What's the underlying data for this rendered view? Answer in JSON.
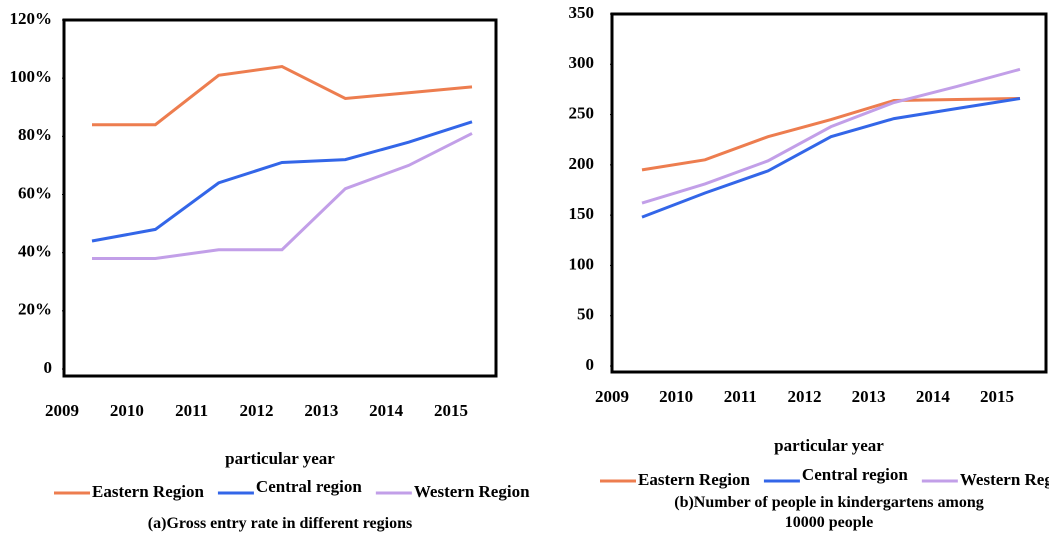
{
  "chart_data": [
    {
      "type": "line",
      "title": "(a)Gross entry rate in different regions",
      "x_label": "particular year",
      "categories": [
        "2009",
        "2010",
        "2011",
        "2012",
        "2013",
        "2014",
        "2015"
      ],
      "series": [
        {
          "name": "Eastern Region",
          "color": "#ed7d4f",
          "values": [
            84,
            84,
            101,
            104,
            93,
            95,
            97
          ]
        },
        {
          "name": "Central region",
          "color": "#3366e8",
          "values": [
            44,
            48,
            64,
            71,
            72,
            78,
            85
          ]
        },
        {
          "name": "Western Region",
          "color": "#c29fe8",
          "values": [
            38,
            38,
            41,
            41,
            62,
            70,
            81
          ]
        }
      ],
      "ylim": [
        0,
        120
      ],
      "yticks": [
        0,
        {
          "value": 20,
          "label": "20%"
        },
        {
          "value": 40,
          "label": "40%"
        },
        {
          "value": 60,
          "label": "60%"
        },
        {
          "value": 80,
          "label": "80%"
        },
        {
          "value": 100,
          "label": "100%"
        },
        {
          "value": 120,
          "label": "120%"
        }
      ]
    },
    {
      "type": "line",
      "title": "(b)Number of people in kindergartens among 10000 people",
      "x_label": "particular year",
      "categories": [
        "2009",
        "2010",
        "2011",
        "2012",
        "2013",
        "2014",
        "2015"
      ],
      "series": [
        {
          "name": "Eastern Region",
          "color": "#ed7d4f",
          "values": [
            195,
            205,
            228,
            245,
            264,
            265,
            266
          ]
        },
        {
          "name": "Central region",
          "color": "#3366e8",
          "values": [
            148,
            172,
            194,
            228,
            246,
            256,
            266
          ]
        },
        {
          "name": "Western Region",
          "color": "#c29fe8",
          "values": [
            162,
            181,
            204,
            238,
            262,
            278,
            295
          ]
        }
      ],
      "ylim": [
        0,
        350
      ],
      "yticks": [
        0,
        50,
        100,
        150,
        200,
        250,
        300,
        350
      ]
    }
  ]
}
